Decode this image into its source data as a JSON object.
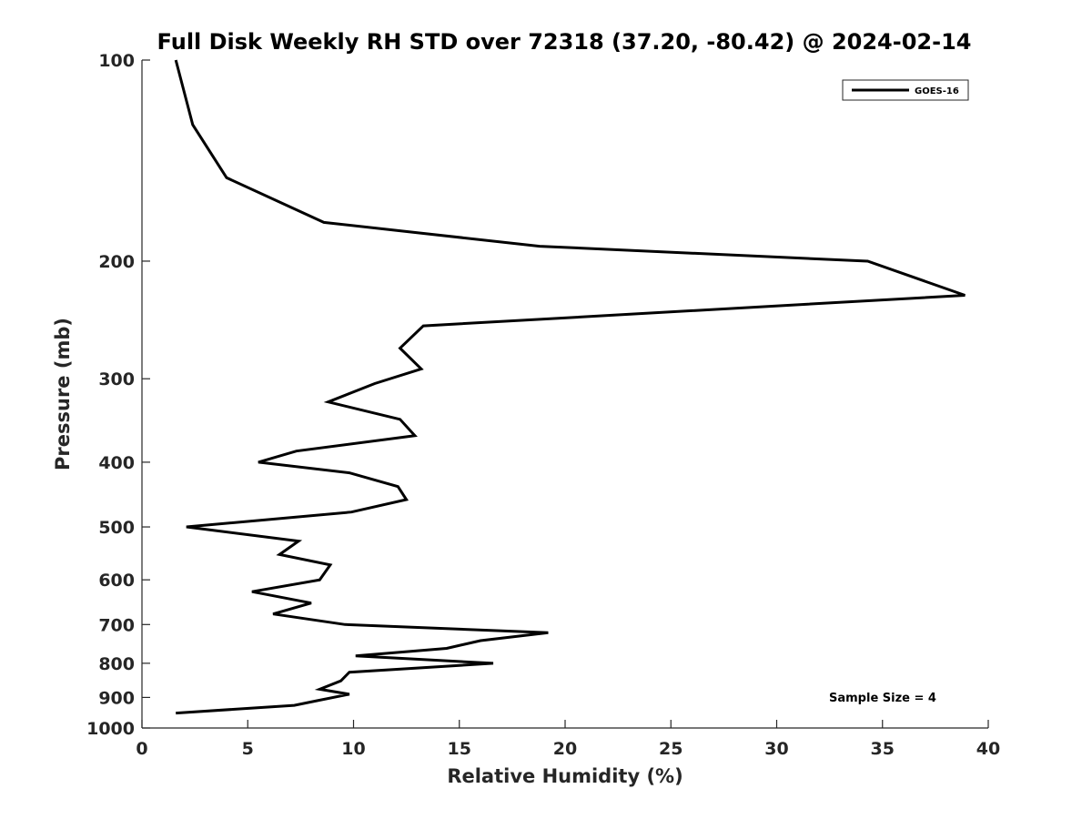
{
  "chart_data": {
    "type": "line",
    "title": "Full Disk Weekly RH STD over 72318 (37.20, -80.42) @ 2024-02-14",
    "xlabel": "Relative Humidity (%)",
    "ylabel": "Pressure (mb)",
    "xlim": [
      0,
      40
    ],
    "ylim": [
      100,
      1000
    ],
    "y_scale": "log",
    "y_reversed": true,
    "grid": false,
    "x_ticks": [
      "0",
      "5",
      "10",
      "15",
      "20",
      "25",
      "30",
      "35",
      "40"
    ],
    "y_ticks": [
      "100",
      "200",
      "300",
      "400",
      "500",
      "600",
      "700",
      "800",
      "900",
      "1000"
    ],
    "legend": {
      "position": "top-right",
      "entries": [
        "GOES-16"
      ]
    },
    "annotations": [
      "Sample Size = 4"
    ],
    "series": [
      {
        "name": "GOES-16",
        "color": "#000000",
        "points": [
          [
            1.6,
            100
          ],
          [
            2.4,
            125
          ],
          [
            4.0,
            150
          ],
          [
            8.6,
            175
          ],
          [
            18.8,
            190
          ],
          [
            34.3,
            200
          ],
          [
            38.9,
            225
          ],
          [
            13.3,
            250
          ],
          [
            12.2,
            270
          ],
          [
            13.2,
            290
          ],
          [
            11.0,
            305
          ],
          [
            8.8,
            325
          ],
          [
            12.2,
            345
          ],
          [
            12.9,
            365
          ],
          [
            7.3,
            385
          ],
          [
            5.5,
            400
          ],
          [
            9.8,
            415
          ],
          [
            12.1,
            435
          ],
          [
            12.5,
            455
          ],
          [
            9.9,
            475
          ],
          [
            2.1,
            500
          ],
          [
            7.4,
            525
          ],
          [
            6.5,
            550
          ],
          [
            8.9,
            570
          ],
          [
            8.4,
            600
          ],
          [
            5.2,
            625
          ],
          [
            8.0,
            650
          ],
          [
            6.2,
            675
          ],
          [
            9.6,
            700
          ],
          [
            19.2,
            720
          ],
          [
            16.0,
            740
          ],
          [
            14.4,
            760
          ],
          [
            10.1,
            780
          ],
          [
            16.6,
            800
          ],
          [
            9.8,
            825
          ],
          [
            9.4,
            850
          ],
          [
            8.4,
            875
          ],
          [
            9.8,
            890
          ],
          [
            8.3,
            910
          ],
          [
            7.2,
            925
          ],
          [
            1.6,
            950
          ]
        ]
      }
    ]
  }
}
